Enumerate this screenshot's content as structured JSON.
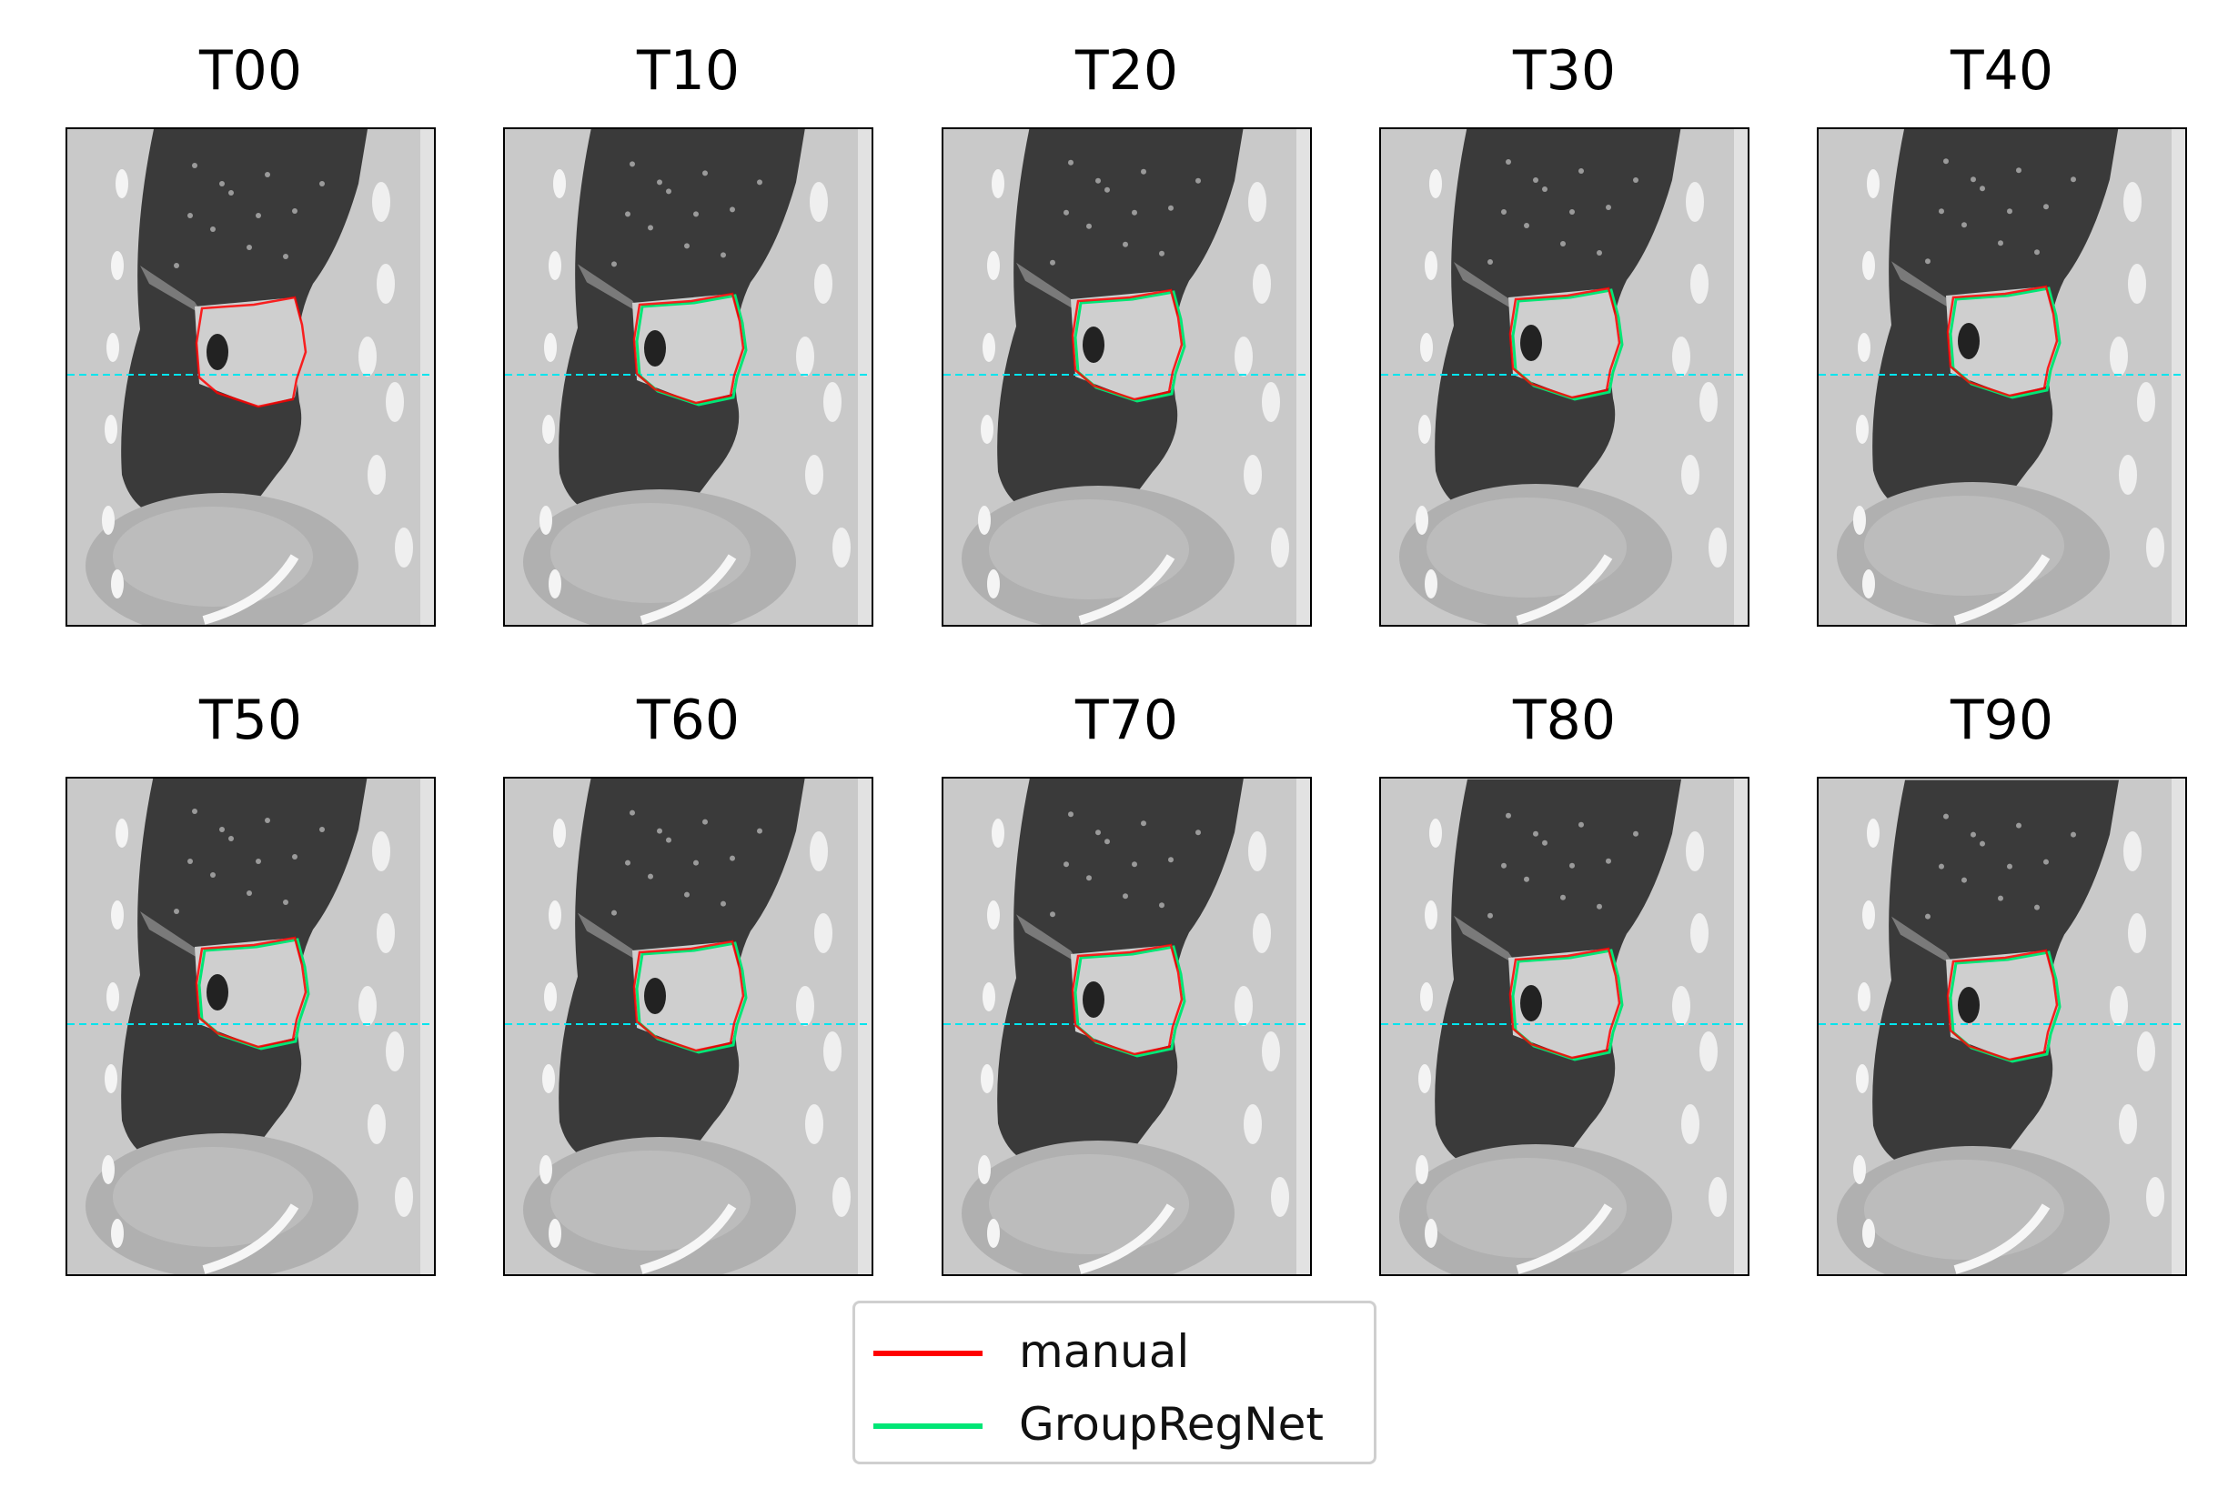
{
  "panels": [
    {
      "title": "T00",
      "has_group": false
    },
    {
      "title": "T10",
      "has_group": true
    },
    {
      "title": "T20",
      "has_group": true
    },
    {
      "title": "T30",
      "has_group": true
    },
    {
      "title": "T40",
      "has_group": true
    },
    {
      "title": "T50",
      "has_group": true
    },
    {
      "title": "T60",
      "has_group": true
    },
    {
      "title": "T70",
      "has_group": true
    },
    {
      "title": "T80",
      "has_group": true
    },
    {
      "title": "T90",
      "has_group": true
    }
  ],
  "legend": {
    "items": [
      {
        "label": "manual",
        "color": "#ff0000"
      },
      {
        "label": "GroupRegNet",
        "color": "#00e676"
      }
    ]
  },
  "colors": {
    "reference_line": "#00e5ee",
    "manual": "#ff0000",
    "group": "#00e676"
  }
}
